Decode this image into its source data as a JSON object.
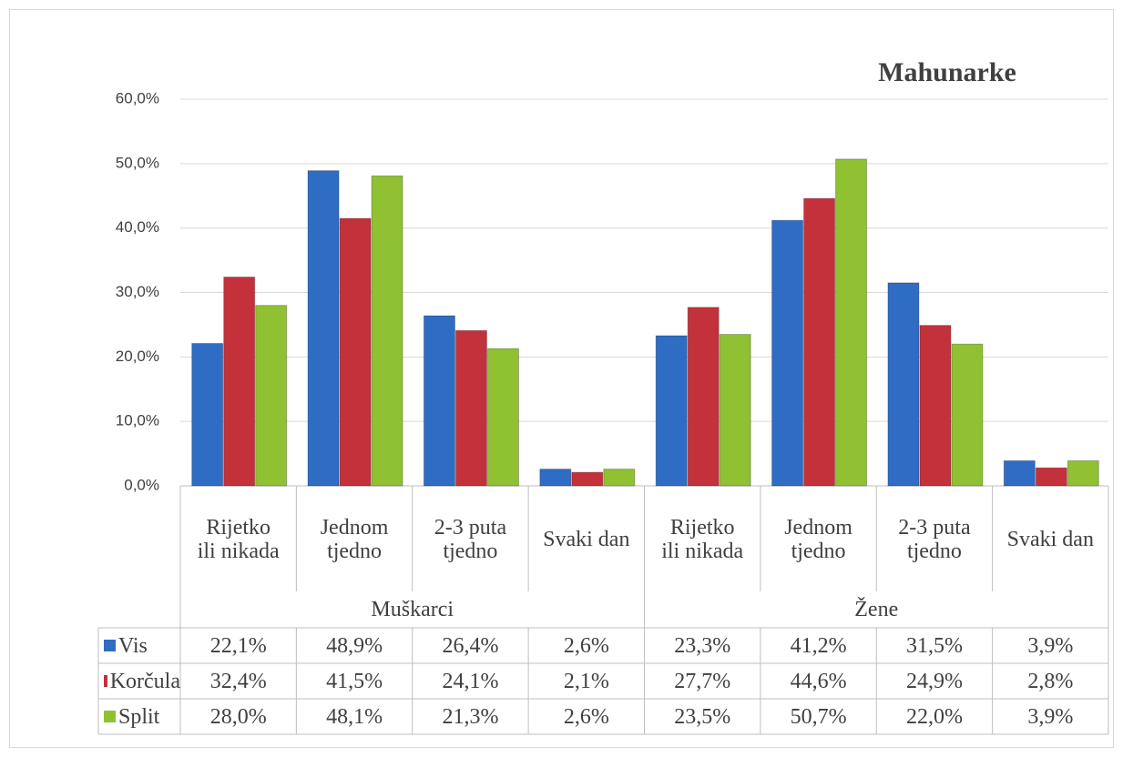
{
  "chart_data": {
    "type": "bar",
    "title": "Mahunarke",
    "groups": [
      {
        "name": "Muškarci",
        "categories": [
          "Rijetko ili nikada",
          "Jednom tjedno",
          "2-3 puta tjedno",
          "Svaki dan"
        ]
      },
      {
        "name": "Žene",
        "categories": [
          "Rijetko ili nikada",
          "Jednom tjedno",
          "2-3 puta tjedno",
          "Svaki dan"
        ]
      }
    ],
    "series": [
      {
        "name": "Vis",
        "color": "#2f6cc4",
        "values": [
          22.1,
          48.9,
          26.4,
          2.6,
          23.3,
          41.2,
          31.5,
          3.9
        ],
        "value_labels": [
          "22,1%",
          "48,9%",
          "26,4%",
          "2,6%",
          "23,3%",
          "41,2%",
          "31,5%",
          "3,9%"
        ]
      },
      {
        "name": "Korčula",
        "color": "#c3323b",
        "values": [
          32.4,
          41.5,
          24.1,
          2.1,
          27.7,
          44.6,
          24.9,
          2.8
        ],
        "value_labels": [
          "32,4%",
          "41,5%",
          "24,1%",
          "2,1%",
          "27,7%",
          "44,6%",
          "24,9%",
          "2,8%"
        ]
      },
      {
        "name": "Split",
        "color": "#8fc133",
        "values": [
          28.0,
          48.1,
          21.3,
          2.6,
          23.5,
          50.7,
          22.0,
          3.9
        ],
        "value_labels": [
          "28,0%",
          "48,1%",
          "21,3%",
          "2,6%",
          "23,5%",
          "50,7%",
          "22,0%",
          "3,9%"
        ]
      }
    ],
    "ylim": [
      0,
      60
    ],
    "yticks": [
      {
        "value": 0,
        "label": "0,0%"
      },
      {
        "value": 10,
        "label": "10,0%"
      },
      {
        "value": 20,
        "label": "20,0%"
      },
      {
        "value": 30,
        "label": "30,0%"
      },
      {
        "value": 40,
        "label": "40,0%"
      },
      {
        "value": 50,
        "label": "50,0%"
      },
      {
        "value": 60,
        "label": "60,0%"
      }
    ],
    "grid": true
  }
}
